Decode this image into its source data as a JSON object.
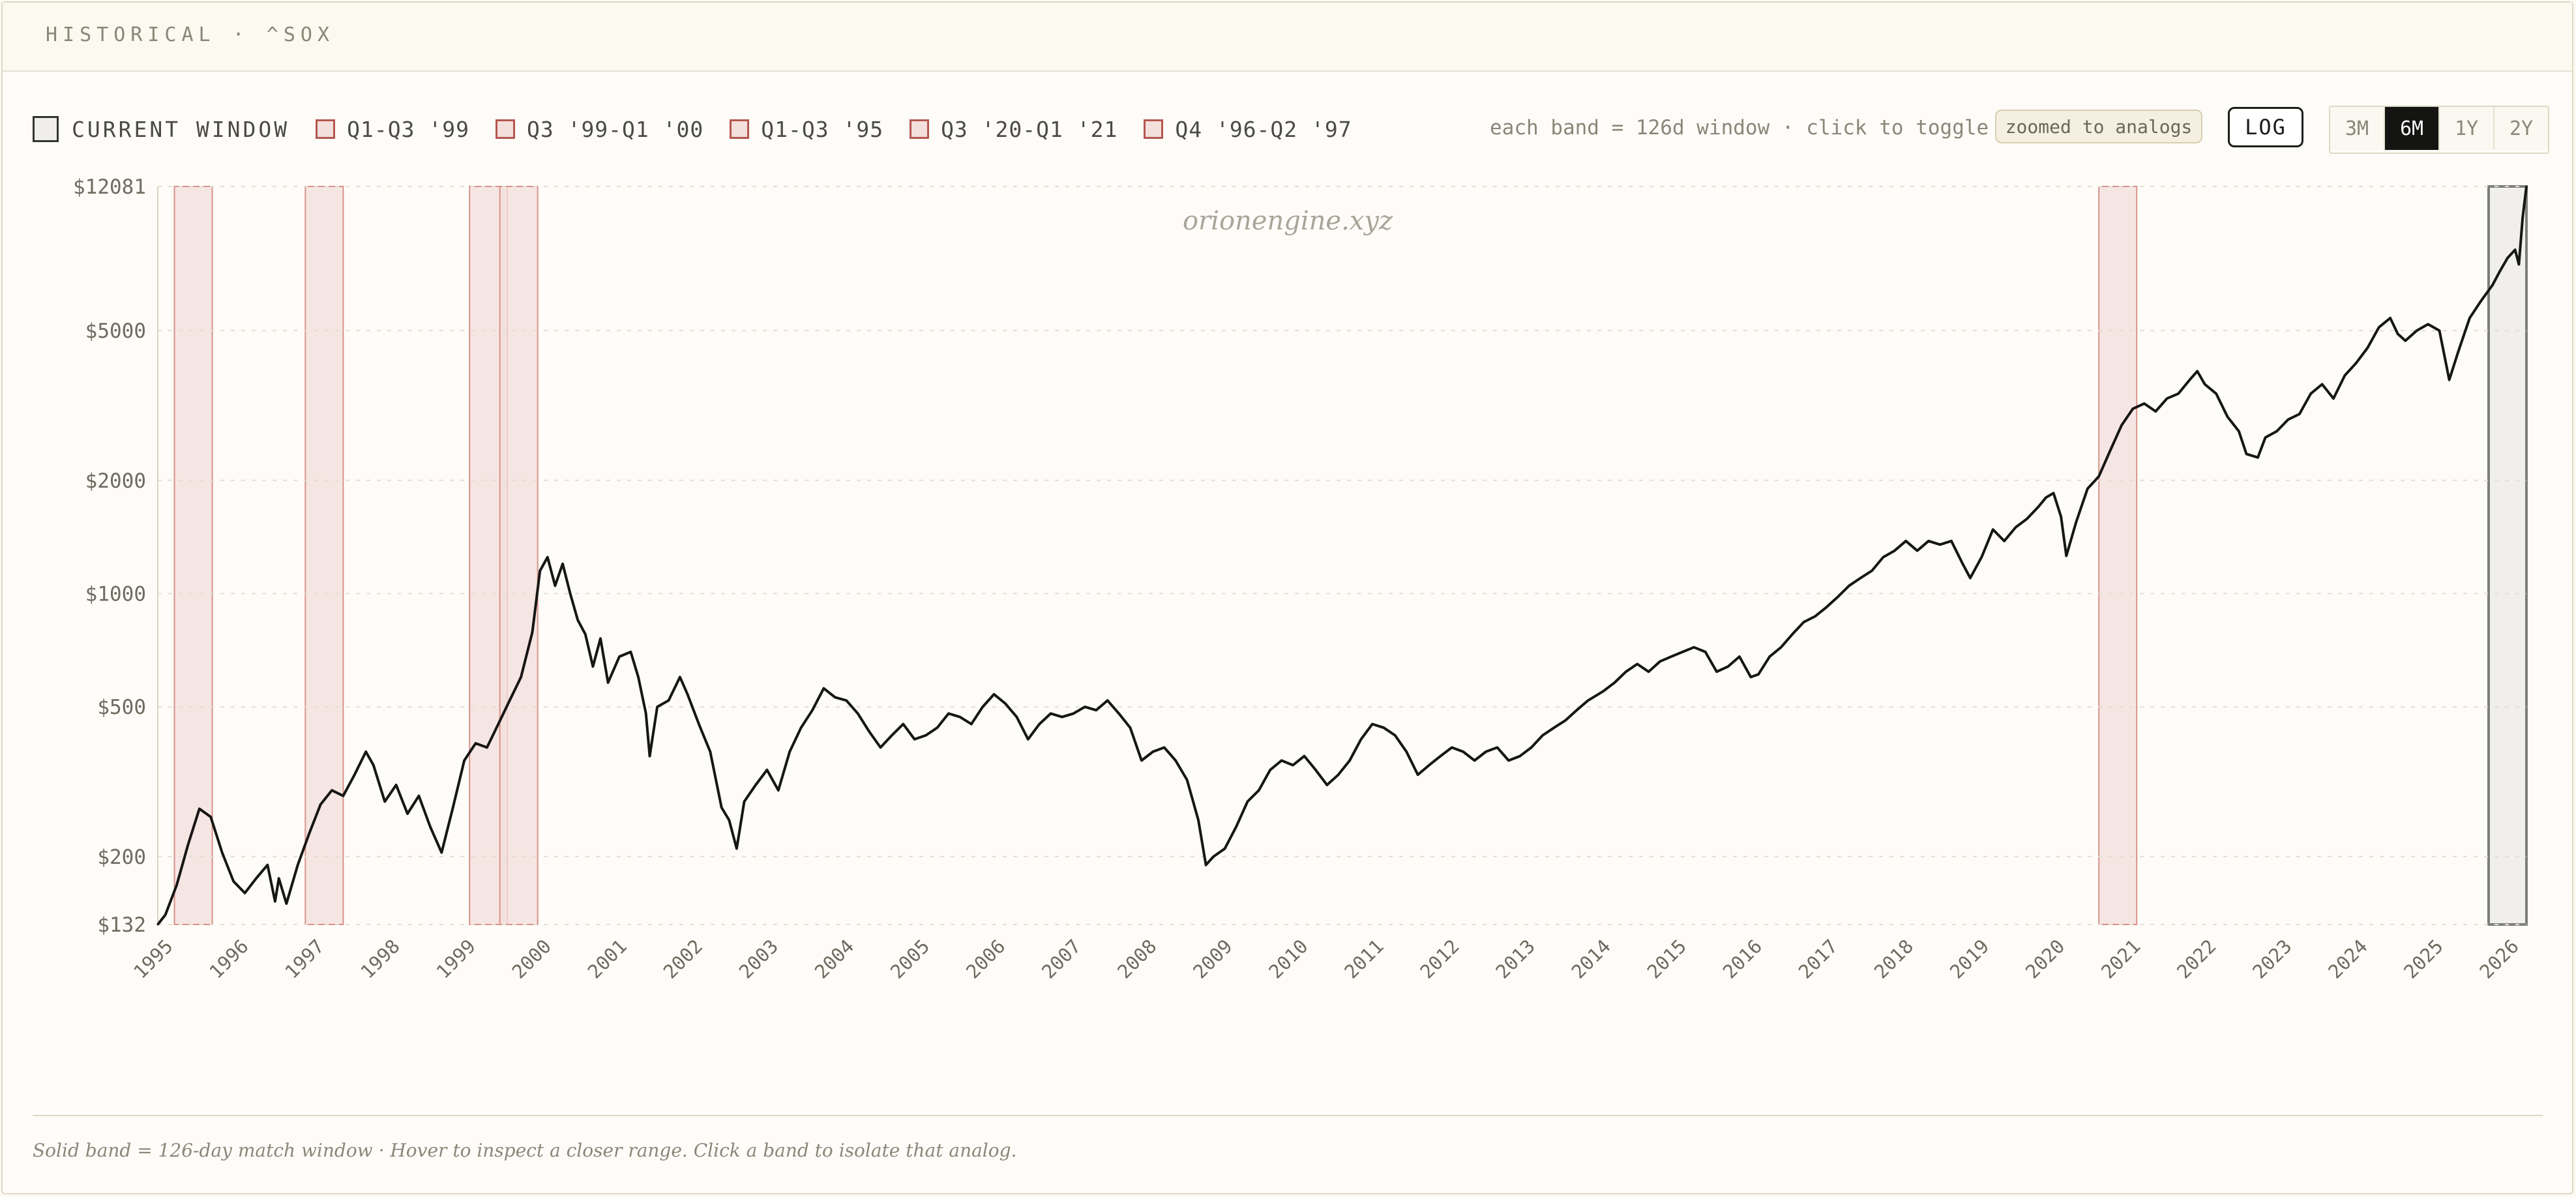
{
  "header": {
    "title": "HISTORICAL · ^SOX"
  },
  "legend": {
    "items": [
      {
        "label": "CURRENT WINDOW",
        "kind": "current"
      },
      {
        "label": "Q1-Q3 '99",
        "kind": "analog"
      },
      {
        "label": "Q3 '99-Q1 '00",
        "kind": "analog"
      },
      {
        "label": "Q1-Q3 '95",
        "kind": "analog"
      },
      {
        "label": "Q3 '20-Q1 '21",
        "kind": "analog"
      },
      {
        "label": "Q4 '96-Q2 '97",
        "kind": "analog"
      }
    ]
  },
  "controls": {
    "band_note": "each band = 126d window · click to toggle",
    "zoom_badge": "zoomed to analogs",
    "log_label": "LOG",
    "ranges": [
      {
        "label": "3M",
        "active": false
      },
      {
        "label": "6M",
        "active": true
      },
      {
        "label": "1Y",
        "active": false
      },
      {
        "label": "2Y",
        "active": false
      }
    ]
  },
  "watermark": "orionengine.xyz",
  "footer": {
    "note": "Solid band = 126-day match window · Hover to inspect a closer range. Click a band to isolate that analog."
  },
  "colors": {
    "line": "#161614",
    "band_fill": "#f3dfdc",
    "band_stroke": "#d9928a",
    "current_fill": "#eeedea",
    "current_stroke": "#7d7d7a",
    "grid": "#e2dfd2",
    "axis_text": "#6e6b60",
    "background": "#fdfcf8"
  },
  "chart_data": {
    "type": "line",
    "title": "",
    "xlabel": "",
    "ylabel": "",
    "yscale": "log",
    "ylim": [
      132,
      12081
    ],
    "xlim": [
      1995.0,
      2026.3
    ],
    "y_ticks": [
      {
        "value": 12081,
        "label": "$12081"
      },
      {
        "value": 5000,
        "label": "$5000"
      },
      {
        "value": 2000,
        "label": "$2000"
      },
      {
        "value": 1000,
        "label": "$1000"
      },
      {
        "value": 500,
        "label": "$500"
      },
      {
        "value": 200,
        "label": "$200"
      },
      {
        "value": 132,
        "label": "$132"
      }
    ],
    "x_ticks": [
      "1995",
      "1996",
      "1997",
      "1998",
      "1999",
      "2000",
      "2001",
      "2002",
      "2003",
      "2004",
      "2005",
      "2006",
      "2007",
      "2008",
      "2009",
      "2010",
      "2011",
      "2012",
      "2013",
      "2014",
      "2015",
      "2016",
      "2017",
      "2018",
      "2019",
      "2020",
      "2021",
      "2022",
      "2023",
      "2024",
      "2025",
      "2026"
    ],
    "grid": true,
    "bands": [
      {
        "label": "Q1-Q3 '95",
        "start": 1995.22,
        "end": 1995.72
      },
      {
        "label": "Q4 '96-Q2 '97",
        "start": 1996.95,
        "end": 1997.45
      },
      {
        "label": "Q1-Q3 '99",
        "start": 1999.12,
        "end": 1999.62
      },
      {
        "label": "Q3 '99-Q1 '00",
        "start": 1999.52,
        "end": 2000.02
      },
      {
        "label": "Q3 '20-Q1 '21",
        "start": 2020.65,
        "end": 2021.15
      },
      {
        "label": "CURRENT WINDOW",
        "start": 2025.8,
        "end": 2026.3,
        "current": true
      }
    ],
    "series": [
      {
        "values": [
          [
            1995.0,
            132
          ],
          [
            1995.1,
            140
          ],
          [
            1995.25,
            168
          ],
          [
            1995.4,
            215
          ],
          [
            1995.55,
            268
          ],
          [
            1995.7,
            255
          ],
          [
            1995.85,
            205
          ],
          [
            1996.0,
            172
          ],
          [
            1996.15,
            160
          ],
          [
            1996.3,
            175
          ],
          [
            1996.45,
            190
          ],
          [
            1996.55,
            152
          ],
          [
            1996.6,
            175
          ],
          [
            1996.7,
            150
          ],
          [
            1996.85,
            190
          ],
          [
            1997.0,
            230
          ],
          [
            1997.15,
            275
          ],
          [
            1997.3,
            300
          ],
          [
            1997.45,
            290
          ],
          [
            1997.6,
            330
          ],
          [
            1997.75,
            380
          ],
          [
            1997.85,
            350
          ],
          [
            1998.0,
            280
          ],
          [
            1998.15,
            310
          ],
          [
            1998.3,
            260
          ],
          [
            1998.45,
            290
          ],
          [
            1998.6,
            240
          ],
          [
            1998.75,
            205
          ],
          [
            1998.9,
            270
          ],
          [
            1999.05,
            360
          ],
          [
            1999.2,
            400
          ],
          [
            1999.35,
            390
          ],
          [
            1999.5,
            450
          ],
          [
            1999.65,
            520
          ],
          [
            1999.8,
            600
          ],
          [
            1999.95,
            790
          ],
          [
            2000.05,
            1150
          ],
          [
            2000.15,
            1250
          ],
          [
            2000.25,
            1050
          ],
          [
            2000.35,
            1200
          ],
          [
            2000.45,
            1000
          ],
          [
            2000.55,
            850
          ],
          [
            2000.65,
            780
          ],
          [
            2000.75,
            640
          ],
          [
            2000.85,
            760
          ],
          [
            2000.95,
            580
          ],
          [
            2001.1,
            680
          ],
          [
            2001.25,
            700
          ],
          [
            2001.35,
            600
          ],
          [
            2001.45,
            480
          ],
          [
            2001.5,
            370
          ],
          [
            2001.6,
            500
          ],
          [
            2001.75,
            520
          ],
          [
            2001.9,
            600
          ],
          [
            2002.0,
            540
          ],
          [
            2002.15,
            450
          ],
          [
            2002.3,
            380
          ],
          [
            2002.45,
            270
          ],
          [
            2002.55,
            250
          ],
          [
            2002.65,
            210
          ],
          [
            2002.75,
            280
          ],
          [
            2002.9,
            310
          ],
          [
            2003.05,
            340
          ],
          [
            2003.2,
            300
          ],
          [
            2003.35,
            380
          ],
          [
            2003.5,
            440
          ],
          [
            2003.65,
            490
          ],
          [
            2003.8,
            560
          ],
          [
            2003.95,
            530
          ],
          [
            2004.1,
            520
          ],
          [
            2004.25,
            480
          ],
          [
            2004.4,
            430
          ],
          [
            2004.55,
            390
          ],
          [
            2004.7,
            420
          ],
          [
            2004.85,
            450
          ],
          [
            2005.0,
            410
          ],
          [
            2005.15,
            420
          ],
          [
            2005.3,
            440
          ],
          [
            2005.45,
            480
          ],
          [
            2005.6,
            470
          ],
          [
            2005.75,
            450
          ],
          [
            2005.9,
            500
          ],
          [
            2006.05,
            540
          ],
          [
            2006.2,
            510
          ],
          [
            2006.35,
            470
          ],
          [
            2006.5,
            410
          ],
          [
            2006.65,
            450
          ],
          [
            2006.8,
            480
          ],
          [
            2006.95,
            470
          ],
          [
            2007.1,
            480
          ],
          [
            2007.25,
            500
          ],
          [
            2007.4,
            490
          ],
          [
            2007.55,
            520
          ],
          [
            2007.7,
            480
          ],
          [
            2007.85,
            440
          ],
          [
            2008.0,
            360
          ],
          [
            2008.15,
            380
          ],
          [
            2008.3,
            390
          ],
          [
            2008.45,
            360
          ],
          [
            2008.6,
            320
          ],
          [
            2008.75,
            250
          ],
          [
            2008.85,
            190
          ],
          [
            2008.95,
            200
          ],
          [
            2009.1,
            210
          ],
          [
            2009.25,
            240
          ],
          [
            2009.4,
            280
          ],
          [
            2009.55,
            300
          ],
          [
            2009.7,
            340
          ],
          [
            2009.85,
            360
          ],
          [
            2010.0,
            350
          ],
          [
            2010.15,
            370
          ],
          [
            2010.3,
            340
          ],
          [
            2010.45,
            310
          ],
          [
            2010.6,
            330
          ],
          [
            2010.75,
            360
          ],
          [
            2010.9,
            410
          ],
          [
            2011.05,
            450
          ],
          [
            2011.2,
            440
          ],
          [
            2011.35,
            420
          ],
          [
            2011.5,
            380
          ],
          [
            2011.65,
            330
          ],
          [
            2011.8,
            350
          ],
          [
            2011.95,
            370
          ],
          [
            2012.1,
            390
          ],
          [
            2012.25,
            380
          ],
          [
            2012.4,
            360
          ],
          [
            2012.55,
            380
          ],
          [
            2012.7,
            390
          ],
          [
            2012.85,
            360
          ],
          [
            2013.0,
            370
          ],
          [
            2013.15,
            390
          ],
          [
            2013.3,
            420
          ],
          [
            2013.45,
            440
          ],
          [
            2013.6,
            460
          ],
          [
            2013.75,
            490
          ],
          [
            2013.9,
            520
          ],
          [
            2014.1,
            550
          ],
          [
            2014.25,
            580
          ],
          [
            2014.4,
            620
          ],
          [
            2014.55,
            650
          ],
          [
            2014.7,
            620
          ],
          [
            2014.85,
            660
          ],
          [
            2015.0,
            680
          ],
          [
            2015.15,
            700
          ],
          [
            2015.3,
            720
          ],
          [
            2015.45,
            700
          ],
          [
            2015.6,
            620
          ],
          [
            2015.75,
            640
          ],
          [
            2015.9,
            680
          ],
          [
            2016.05,
            600
          ],
          [
            2016.15,
            610
          ],
          [
            2016.3,
            680
          ],
          [
            2016.45,
            720
          ],
          [
            2016.6,
            780
          ],
          [
            2016.75,
            840
          ],
          [
            2016.9,
            870
          ],
          [
            2017.05,
            920
          ],
          [
            2017.2,
            980
          ],
          [
            2017.35,
            1050
          ],
          [
            2017.5,
            1100
          ],
          [
            2017.65,
            1150
          ],
          [
            2017.8,
            1250
          ],
          [
            2017.95,
            1300
          ],
          [
            2018.1,
            1380
          ],
          [
            2018.25,
            1300
          ],
          [
            2018.4,
            1380
          ],
          [
            2018.55,
            1350
          ],
          [
            2018.7,
            1380
          ],
          [
            2018.85,
            1200
          ],
          [
            2018.95,
            1100
          ],
          [
            2019.1,
            1250
          ],
          [
            2019.25,
            1480
          ],
          [
            2019.4,
            1380
          ],
          [
            2019.55,
            1500
          ],
          [
            2019.7,
            1580
          ],
          [
            2019.85,
            1700
          ],
          [
            2019.95,
            1800
          ],
          [
            2020.05,
            1850
          ],
          [
            2020.15,
            1600
          ],
          [
            2020.22,
            1260
          ],
          [
            2020.35,
            1550
          ],
          [
            2020.5,
            1900
          ],
          [
            2020.65,
            2050
          ],
          [
            2020.8,
            2400
          ],
          [
            2020.95,
            2800
          ],
          [
            2021.1,
            3100
          ],
          [
            2021.25,
            3200
          ],
          [
            2021.4,
            3050
          ],
          [
            2021.55,
            3300
          ],
          [
            2021.7,
            3400
          ],
          [
            2021.85,
            3700
          ],
          [
            2021.95,
            3900
          ],
          [
            2022.05,
            3600
          ],
          [
            2022.2,
            3400
          ],
          [
            2022.35,
            2950
          ],
          [
            2022.5,
            2700
          ],
          [
            2022.6,
            2350
          ],
          [
            2022.75,
            2300
          ],
          [
            2022.85,
            2600
          ],
          [
            2023.0,
            2700
          ],
          [
            2023.15,
            2900
          ],
          [
            2023.3,
            3000
          ],
          [
            2023.45,
            3400
          ],
          [
            2023.6,
            3600
          ],
          [
            2023.75,
            3300
          ],
          [
            2023.9,
            3800
          ],
          [
            2024.05,
            4100
          ],
          [
            2024.2,
            4500
          ],
          [
            2024.35,
            5100
          ],
          [
            2024.5,
            5400
          ],
          [
            2024.6,
            4900
          ],
          [
            2024.7,
            4700
          ],
          [
            2024.85,
            5000
          ],
          [
            2025.0,
            5200
          ],
          [
            2025.15,
            5000
          ],
          [
            2025.28,
            3700
          ],
          [
            2025.4,
            4400
          ],
          [
            2025.55,
            5400
          ],
          [
            2025.7,
            6000
          ],
          [
            2025.85,
            6600
          ],
          [
            2025.95,
            7200
          ],
          [
            2026.05,
            7800
          ],
          [
            2026.15,
            8200
          ],
          [
            2026.2,
            7500
          ],
          [
            2026.25,
            10000
          ],
          [
            2026.3,
            12081
          ]
        ]
      }
    ]
  }
}
